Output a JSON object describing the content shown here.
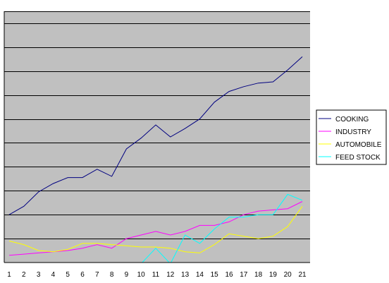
{
  "chart_data": {
    "type": "line",
    "title": "",
    "xlabel": "",
    "ylabel": "",
    "x": [
      "1",
      "2",
      "3",
      "4",
      "5",
      "6",
      "7",
      "8",
      "9",
      "10",
      "11",
      "12",
      "13",
      "14",
      "15",
      "16",
      "17",
      "18",
      "19",
      "20",
      "21"
    ],
    "ylim": [
      0,
      10.5
    ],
    "grid": true,
    "plot_background": "#c0c0c0",
    "legend_position": "right",
    "series": [
      {
        "name": "COOKING",
        "color": "#000080",
        "values": [
          2.0,
          2.35,
          2.95,
          3.3,
          3.55,
          3.55,
          3.9,
          3.6,
          4.75,
          5.2,
          5.75,
          5.25,
          5.6,
          6.0,
          6.7,
          7.15,
          7.35,
          7.5,
          7.55,
          8.05,
          8.6
        ]
      },
      {
        "name": "INDUSTRY",
        "color": "#ff00ff",
        "values": [
          0.3,
          0.35,
          0.4,
          0.45,
          0.5,
          0.6,
          0.75,
          0.6,
          1.0,
          1.15,
          1.3,
          1.15,
          1.3,
          1.55,
          1.55,
          1.7,
          2.0,
          2.15,
          2.2,
          2.25,
          2.55
        ]
      },
      {
        "name": "AUTOMOBILE",
        "color": "#ffff00",
        "values": [
          0.9,
          0.75,
          0.5,
          0.45,
          0.55,
          0.8,
          0.8,
          0.75,
          0.7,
          0.65,
          0.65,
          0.6,
          0.45,
          0.4,
          0.75,
          1.2,
          1.1,
          1.0,
          1.1,
          1.5,
          2.35
        ]
      },
      {
        "name": "FEED STOCK",
        "color": "#00ffff",
        "values": [
          null,
          null,
          null,
          null,
          null,
          null,
          null,
          null,
          null,
          -0.05,
          0.6,
          -0.05,
          1.15,
          0.8,
          1.4,
          1.9,
          1.9,
          2.0,
          2.0,
          2.85,
          2.6
        ]
      }
    ]
  }
}
